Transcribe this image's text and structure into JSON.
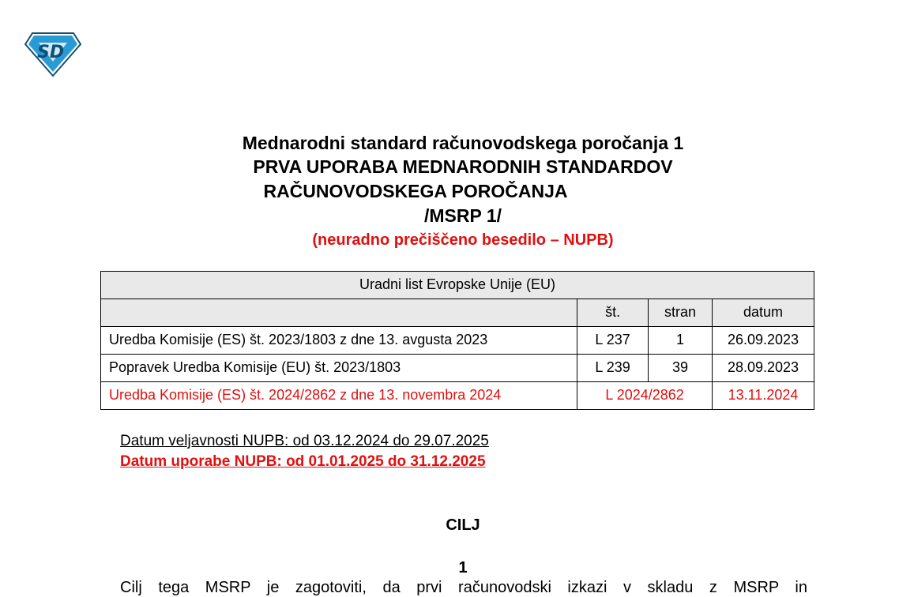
{
  "logo": {
    "text": "SD",
    "icon": "superman-diamond-logo",
    "color": "#1e8fc8"
  },
  "title": {
    "line1": "Mednarodni standard računovodskega poročanja 1",
    "line2": "PRVA UPORABA MEDNARODNIH STANDARDOV",
    "line3": "RAČUNOVODSKEGA POROČANJA",
    "line4": "/MSRP 1/",
    "subtitle": "(neuradno prečiščeno besedilo – NUPB)"
  },
  "table": {
    "caption": "Uradni list Evropske Unije (EU)",
    "headers": [
      "",
      "št.",
      "stran",
      "datum"
    ],
    "rows": [
      {
        "regulation": "Uredba Komisije (ES) št. 2023/1803 z dne 13. avgusta 2023",
        "number": "L 237",
        "page": "1",
        "date": "26.09.2023"
      },
      {
        "regulation": "Popravek Uredba Komisije (EU) št. 2023/1803",
        "number": "L 239",
        "page": "39",
        "date": "28.09.2023"
      },
      {
        "regulation": "Uredba Komisije (ES) št. 2024/2862 z dne 13. novembra 2024",
        "number": "L 2024/2862",
        "date": "13.11.2024"
      }
    ]
  },
  "validity": "Datum veljavnosti NUPB: od 03.12.2024 do 29.07.2025",
  "application": "Datum uporabe NUPB: od 01.01.2025 do 31.12.2025",
  "section_heading": "CILJ",
  "paragraph_number": "1",
  "paragraph_text": "Cilj tega MSRP je zagotoviti, da prvi računovodski izkazi v skladu z MSRP in",
  "colors": {
    "accent_red": "#e01010",
    "header_gray": "#e9e9e9"
  }
}
